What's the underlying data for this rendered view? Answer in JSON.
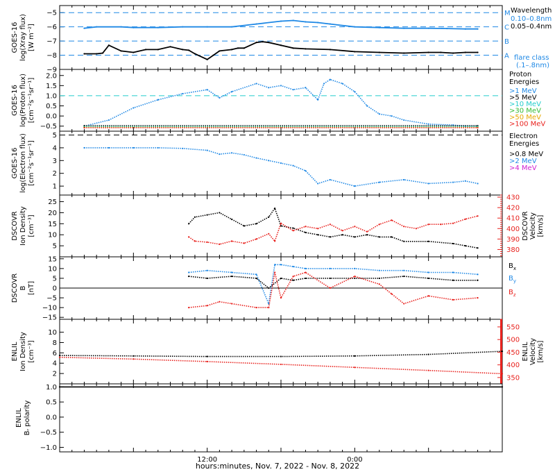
{
  "xlabel": "hours:minutes, Nov.  7, 2022 - Nov.  8, 2022",
  "colors": {
    "black": "#000000",
    "blue": "#1e88e5",
    "cyan": "#22cccc",
    "green": "#33bb33",
    "orange": "#e6a800",
    "red": "#e8201c",
    "magenta": "#d020d0"
  },
  "x_ticks": [
    {
      "hour": 12,
      "label": "12:00"
    },
    {
      "hour": 24,
      "label": "0:00"
    }
  ],
  "chart_data": [
    {
      "type": "line",
      "id": "xray",
      "ylabel": [
        "GOES-16",
        "log(Xray flux)",
        "[W m⁻²]"
      ],
      "ylim": [
        -9,
        -4.5
      ],
      "yticks": [
        -9,
        -8,
        -7,
        -6,
        -5
      ],
      "ytick_labels": [
        "−9",
        "−8",
        "−7",
        "−6",
        "−5"
      ],
      "flare_lines": [
        {
          "value": -5,
          "letter": "M"
        },
        {
          "value": -6,
          "letter": "C"
        },
        {
          "value": -7,
          "letter": "B"
        },
        {
          "value": -8,
          "letter": "A"
        }
      ],
      "legend_title": "Wavelength",
      "series": [
        {
          "name": "0.10–0.8nm",
          "color": "blue",
          "x": [
            2,
            3,
            5,
            6,
            8,
            10,
            12,
            14,
            16,
            18,
            19,
            20,
            21,
            22,
            24,
            26,
            28,
            30,
            31.5,
            33,
            34
          ],
          "y": [
            -6.1,
            -6.0,
            -6.0,
            -6.05,
            -6.05,
            -6.0,
            -6.0,
            -6.0,
            -5.8,
            -5.6,
            -5.55,
            -5.65,
            -5.7,
            -5.8,
            -6.0,
            -6.05,
            -6.1,
            -6.1,
            -6.12,
            -6.15,
            -6.15
          ]
        },
        {
          "name": "0.05–0.4nm",
          "color": "black",
          "x": [
            2,
            3,
            3.5,
            4,
            5,
            6,
            7,
            8,
            9,
            10,
            10.5,
            11,
            12,
            12.5,
            13,
            14,
            14.5,
            15,
            16,
            16.5,
            17,
            18,
            19,
            20,
            22,
            24,
            26,
            28,
            30,
            31,
            32,
            33,
            34
          ],
          "y": [
            -7.9,
            -7.9,
            -7.85,
            -7.3,
            -7.7,
            -7.8,
            -7.6,
            -7.6,
            -7.4,
            -7.6,
            -7.65,
            -7.9,
            -8.3,
            -8.0,
            -7.7,
            -7.6,
            -7.5,
            -7.5,
            -7.1,
            -7.05,
            -7.1,
            -7.3,
            -7.5,
            -7.55,
            -7.6,
            -7.75,
            -7.8,
            -7.85,
            -7.8,
            -7.8,
            -7.85,
            -7.8,
            -7.8
          ]
        }
      ],
      "annotation": [
        "flare class",
        "(.1–.8nm)"
      ]
    },
    {
      "type": "scatter",
      "id": "proton",
      "ylabel": [
        "GOES-16",
        "log(Proton flux)",
        "[cm⁻²s⁻¹sr⁻¹]"
      ],
      "ylim": [
        -0.75,
        2.3
      ],
      "yticks": [
        -0.5,
        0,
        0.5,
        1,
        1.5,
        2
      ],
      "ytick_labels": [
        "−0.5",
        "0.0",
        "0.5",
        "1.0",
        "1.5",
        "2.0"
      ],
      "reference_line": 1.0,
      "legend_title": [
        "Proton",
        "Energies"
      ],
      "series": [
        {
          "name": ">1 MeV",
          "color": "blue",
          "x": [
            2,
            4,
            6,
            8,
            10,
            12,
            13,
            14,
            16,
            17,
            18,
            19,
            20,
            21,
            21.5,
            22,
            23,
            24,
            25,
            26,
            27,
            28,
            30,
            32,
            33,
            34
          ],
          "y": [
            -0.5,
            -0.2,
            0.4,
            0.8,
            1.1,
            1.3,
            0.9,
            1.2,
            1.6,
            1.4,
            1.5,
            1.3,
            1.4,
            0.8,
            1.6,
            1.8,
            1.6,
            1.2,
            0.5,
            0.1,
            0,
            -0.2,
            -0.4,
            -0.45,
            -0.5,
            -0.5
          ]
        },
        {
          "name": ">5 MeV",
          "color": "black",
          "x": [
            2,
            34
          ],
          "y": [
            -0.48,
            -0.48
          ]
        },
        {
          "name": ">10 MeV",
          "color": "cyan",
          "x": [
            2,
            34
          ],
          "y": [
            -0.52,
            -0.52
          ]
        },
        {
          "name": ">30 MeV",
          "color": "green",
          "x": [
            2,
            34
          ],
          "y": [
            -0.55,
            -0.55
          ]
        },
        {
          "name": ">50 MeV",
          "color": "orange",
          "x": [
            2,
            34
          ],
          "y": [
            -0.57,
            -0.57
          ]
        },
        {
          "name": ">100 MeV",
          "color": "red",
          "x": [
            2,
            34
          ],
          "y": [
            -0.58,
            -0.58
          ]
        }
      ]
    },
    {
      "type": "scatter",
      "id": "electron",
      "ylabel": [
        "GOES-16",
        "log(Electron flux)",
        "[cm⁻²s⁻¹sr⁻¹]"
      ],
      "ylim": [
        0.3,
        5.3
      ],
      "yticks": [
        1,
        2,
        3,
        4,
        5
      ],
      "ytick_labels": [
        "1",
        "2",
        "3",
        "4",
        "5"
      ],
      "reference_line": 5.0,
      "legend_title": [
        "Electron",
        "Energies"
      ],
      "series": [
        {
          "name": ">0.8 MeV",
          "color": "black",
          "x": [],
          "y": []
        },
        {
          "name": ">2 MeV",
          "color": "blue",
          "x": [
            2,
            4,
            6,
            8,
            10,
            12,
            13,
            14,
            15,
            16,
            17,
            18,
            19,
            20,
            21,
            22,
            24,
            26,
            28,
            30,
            32,
            33,
            34
          ],
          "y": [
            4.0,
            4.0,
            4.0,
            4.0,
            3.95,
            3.8,
            3.5,
            3.6,
            3.45,
            3.2,
            3.0,
            2.8,
            2.6,
            2.2,
            1.2,
            1.5,
            1.0,
            1.3,
            1.5,
            1.2,
            1.3,
            1.4,
            1.2
          ]
        },
        {
          "name": ">4 MeV",
          "color": "magenta",
          "x": [],
          "y": []
        }
      ]
    },
    {
      "type": "scatter",
      "id": "dscovr_plasma",
      "ylabel": [
        "DSCOVR",
        "Ion Density",
        "[cm⁻³]"
      ],
      "ylim": [
        0,
        28
      ],
      "yticks": [
        5,
        10,
        15,
        20,
        25
      ],
      "ytick_labels": [
        "5",
        "10",
        "15",
        "20",
        "25"
      ],
      "y2label": [
        "DSCOVR",
        "Velocity",
        "[km/s]"
      ],
      "y2lim": [
        373,
        432
      ],
      "y2ticks": [
        380,
        390,
        400,
        410,
        420,
        430
      ],
      "y2tick_labels": [
        "380",
        "390",
        "400",
        "410",
        "420",
        "430"
      ],
      "series": [
        {
          "name": "density",
          "color": "black",
          "axis": "left",
          "x": [
            10.5,
            11,
            12,
            13,
            14,
            15,
            16,
            17,
            17.5,
            18,
            19,
            20,
            21,
            22,
            23,
            24,
            25,
            26,
            27,
            28,
            30,
            32,
            33,
            34
          ],
          "y": [
            15,
            18,
            19,
            20,
            17,
            14,
            15,
            18,
            22,
            14,
            13,
            11,
            10,
            9,
            10,
            9,
            10,
            9,
            9,
            7,
            7,
            6,
            5,
            4
          ]
        },
        {
          "name": "velocity",
          "color": "red",
          "axis": "right",
          "x": [
            10.5,
            11,
            12,
            13,
            14,
            15,
            16,
            17,
            17.5,
            18,
            19,
            20,
            21,
            22,
            23,
            24,
            25,
            26,
            27,
            28,
            29,
            30,
            31,
            32,
            33,
            34
          ],
          "y": [
            392,
            388,
            387,
            385,
            388,
            386,
            390,
            395,
            388,
            405,
            398,
            402,
            400,
            404,
            398,
            402,
            397,
            404,
            408,
            402,
            400,
            404,
            404,
            405,
            409,
            412
          ]
        }
      ]
    },
    {
      "type": "scatter",
      "id": "dscovr_mag",
      "ylabel": [
        "DSCOVR",
        "B",
        "[nT]"
      ],
      "ylim": [
        -16,
        16
      ],
      "yticks": [
        -15,
        -10,
        -5,
        0,
        5,
        10,
        15
      ],
      "ytick_labels": [
        "−15",
        "−10",
        "−5",
        "0",
        "5",
        "10",
        "15"
      ],
      "series": [
        {
          "name": "Bx",
          "color": "black",
          "x": [
            10.5,
            12,
            14,
            16,
            17,
            18,
            19,
            20,
            22,
            24,
            26,
            28,
            30,
            32,
            34
          ],
          "y": [
            6,
            5,
            6,
            5,
            0,
            5,
            4,
            5,
            5,
            5,
            5,
            6,
            5,
            4,
            4
          ]
        },
        {
          "name": "By",
          "color": "blue",
          "x": [
            10.5,
            12,
            14,
            16,
            17,
            17.5,
            18,
            19,
            20,
            22,
            24,
            26,
            28,
            30,
            32,
            34
          ],
          "y": [
            8,
            9,
            8,
            7,
            -8,
            12,
            12,
            11,
            10,
            10,
            10,
            9,
            9,
            8,
            8,
            7
          ]
        },
        {
          "name": "Bz",
          "color": "red",
          "x": [
            10.5,
            12,
            13,
            14,
            16,
            17,
            17.5,
            18,
            19,
            20,
            22,
            24,
            26,
            27,
            28,
            30,
            32,
            34
          ],
          "y": [
            -10,
            -9,
            -7,
            -8,
            -10,
            -10,
            8,
            -5,
            6,
            8,
            0,
            6,
            2,
            -3,
            -8,
            -4,
            -6,
            -5
          ]
        }
      ]
    },
    {
      "type": "scatter",
      "id": "enlil_plasma",
      "ylabel": [
        "ENLIL",
        "Ion Density",
        "[cm⁻³]"
      ],
      "ylim": [
        0,
        12.5
      ],
      "yticks": [
        2,
        4,
        6,
        8,
        10
      ],
      "ytick_labels": [
        "2",
        "4",
        "6",
        "8",
        "10"
      ],
      "y2label": [
        "ENLIL",
        "Velocity",
        "[km/s]"
      ],
      "y2lim": [
        325,
        580
      ],
      "y2ticks": [
        350,
        400,
        450,
        500,
        550
      ],
      "y2tick_labels": [
        "350",
        "400",
        "450",
        "500",
        "550"
      ],
      "series": [
        {
          "name": "density",
          "color": "black",
          "axis": "left",
          "x": [
            0,
            6,
            12,
            18,
            24,
            30,
            36
          ],
          "y": [
            5.5,
            5.4,
            5.3,
            5.3,
            5.4,
            5.7,
            6.3
          ]
        },
        {
          "name": "velocity",
          "color": "red",
          "axis": "right",
          "x": [
            0,
            6,
            12,
            18,
            24,
            30,
            36
          ],
          "y": [
            430,
            423,
            413,
            402,
            390,
            378,
            365
          ]
        }
      ]
    },
    {
      "type": "scatter",
      "id": "enlil_polarity",
      "ylabel": [
        "ENLIL",
        "Bᵣ polarity"
      ],
      "ylim": [
        -1.15,
        1.1
      ],
      "yticks": [
        -1,
        -0.5,
        0,
        0.5,
        1
      ],
      "ytick_labels": [
        "−1.0",
        "−0.5",
        "0.0",
        "0.5",
        "1.0"
      ],
      "series": [
        {
          "name": "polarity",
          "color": "black",
          "x": [
            0,
            36
          ],
          "y": [
            1,
            1
          ]
        }
      ]
    }
  ]
}
